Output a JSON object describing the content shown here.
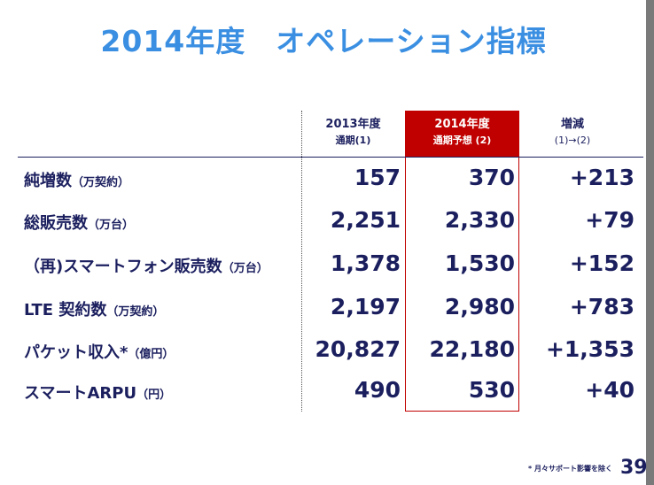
{
  "title": "2014年度　オペレーション指標",
  "headers": [
    {
      "line1": "2013年度",
      "line2": "通期(1)"
    },
    {
      "line1": "2014年度",
      "line2": "通期予想 (2)"
    },
    {
      "line1": "増減",
      "line2": "(1)→(2)"
    }
  ],
  "rows": [
    {
      "label": "純増数",
      "unit": "（万契約）",
      "v2013": "157",
      "v2014": "370",
      "diff": "+213"
    },
    {
      "label": "総販売数",
      "unit": "（万台）",
      "v2013": "2,251",
      "v2014": "2,330",
      "diff": "+79"
    },
    {
      "label": "（再)スマートフォン販売数",
      "unit": "（万台）",
      "v2013": "1,378",
      "v2014": "1,530",
      "diff": "+152"
    },
    {
      "label": "LTE 契約数",
      "unit": "（万契約）",
      "v2013": "2,197",
      "v2014": "2,980",
      "diff": "+783"
    },
    {
      "label": "パケット収入*",
      "unit": "（億円）",
      "v2013": "20,827",
      "v2014": "22,180",
      "diff": "+1,353"
    },
    {
      "label": "スマートARPU",
      "unit": "（円）",
      "v2013": "490",
      "v2014": "530",
      "diff": "+40"
    }
  ],
  "footnote": "* 月々サポート影響を除く",
  "page_number": "39"
}
